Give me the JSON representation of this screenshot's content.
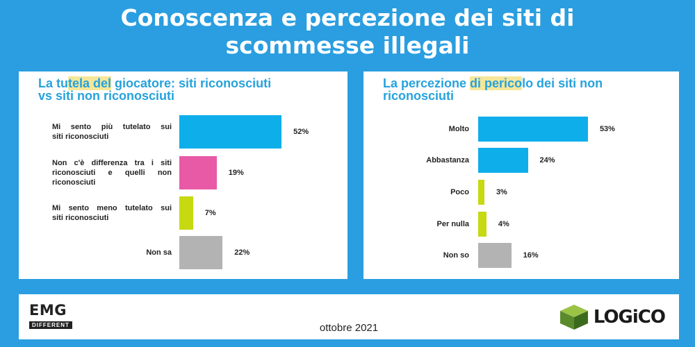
{
  "title_line1": "Conoscenza e percezione dei siti di",
  "title_line2": "scommesse illegali",
  "left_panel": {
    "title_line1_a": "La tu",
    "title_line1_hl": "tela del",
    "title_line1_b": " giocatore: siti riconosciuti",
    "title_line2": "vs siti non riconosciuti"
  },
  "right_panel": {
    "title_line1_a": "La percezione ",
    "title_line1_hl": "di perico",
    "title_line1_b": "lo dei siti non",
    "title_line2": "riconosciuti"
  },
  "footer": {
    "emg": "EMG",
    "emg_sub": "DIFFERENT",
    "date": "ottobre 2021",
    "logo": "LOGiCO"
  },
  "chart_data": [
    {
      "type": "bar",
      "orientation": "horizontal",
      "categories": [
        [
          "Mi sento più tutelato sui",
          "siti riconosciuti"
        ],
        [
          "Non c'è differenza tra i siti",
          "riconosciuti e quelli non",
          "riconosciuti"
        ],
        [
          "Mi sento meno tutelato sui",
          "siti riconosciuti"
        ],
        [
          "Non sa"
        ]
      ],
      "values": [
        52,
        19,
        7,
        22
      ],
      "value_labels": [
        "52%",
        "19%",
        "7%",
        "22%"
      ],
      "colors": [
        "#0eaeea",
        "#e85aa6",
        "#c6d911",
        "#b3b3b3"
      ]
    },
    {
      "type": "bar",
      "orientation": "horizontal",
      "categories": [
        [
          "Molto"
        ],
        [
          "Abbastanza"
        ],
        [
          "Poco"
        ],
        [
          "Per nulla"
        ],
        [
          "Non so"
        ]
      ],
      "values": [
        53,
        24,
        3,
        4,
        16
      ],
      "value_labels": [
        "53%",
        "24%",
        "3%",
        "4%",
        "16%"
      ],
      "colors": [
        "#0eaeea",
        "#0eaeea",
        "#c6d911",
        "#c6d911",
        "#b3b3b3"
      ]
    }
  ]
}
